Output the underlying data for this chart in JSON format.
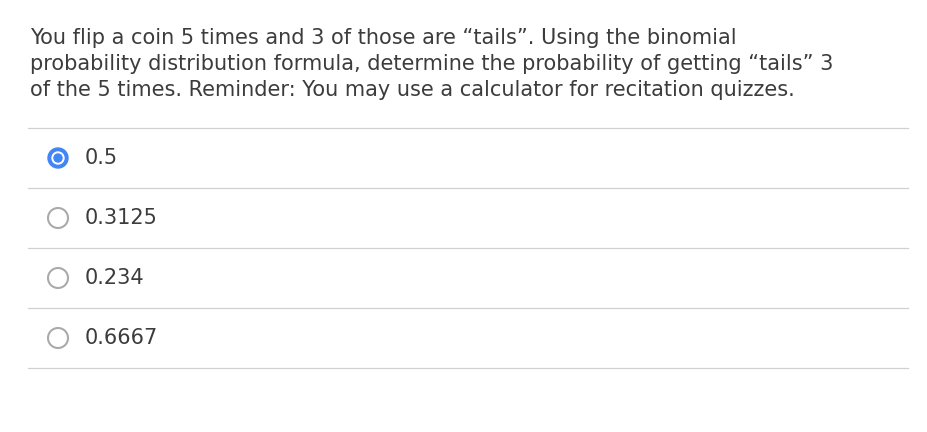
{
  "background_color": "#ffffff",
  "question_text_lines": [
    "You flip a coin 5 times and 3 of those are “tails”. Using the binomial",
    "probability distribution formula, determine the probability of getting “tails” 3",
    "of the 5 times. Reminder: You may use a calculator for recitation quizzes."
  ],
  "options": [
    "0.5",
    "0.3125",
    "0.234",
    "0.6667"
  ],
  "selected_index": 0,
  "text_color": "#3c3c3c",
  "divider_color": "#d0d0d0",
  "radio_unselected_edge": "#aaaaaa",
  "radio_selected_outer": "#4285f4",
  "radio_selected_inner_dot": "#4285f4",
  "font_size_question": 15.0,
  "font_size_option": 15.0,
  "fig_width": 9.28,
  "fig_height": 4.32,
  "dpi": 100
}
